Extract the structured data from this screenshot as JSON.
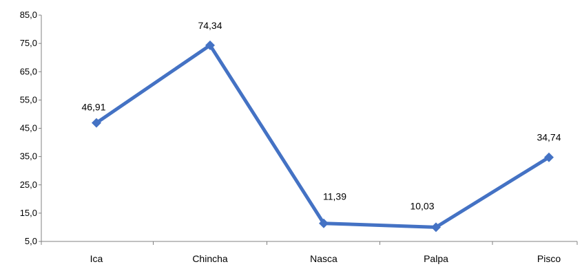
{
  "chart_data": {
    "type": "line",
    "title": "",
    "xlabel": "",
    "ylabel": "",
    "categories": [
      "Ica",
      "Chincha",
      "Nasca",
      "Palpa",
      "Pisco"
    ],
    "series": [
      {
        "values": [
          46.91,
          74.34,
          11.39,
          10.03,
          34.74
        ],
        "data_labels": [
          "46,91",
          "74,34",
          "11,39",
          "10,03",
          "34,74"
        ],
        "color": "#4472C4",
        "marker": "diamond"
      }
    ],
    "ylim": [
      5,
      85
    ],
    "yticks": [
      5,
      15,
      25,
      35,
      45,
      55,
      65,
      75,
      85
    ],
    "ytick_labels": [
      "5,0",
      "15,0",
      "25,0",
      "35,0",
      "45,0",
      "55,0",
      "65,0",
      "75,0",
      "85,0"
    ],
    "grid": false,
    "legend": "none"
  }
}
